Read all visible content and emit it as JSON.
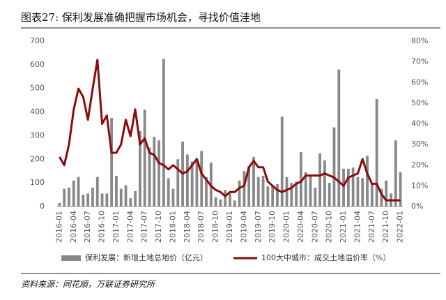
{
  "chart_data": {
    "type": "bar_line",
    "title": "图表27: 保利发展准确把握市场机会，寻找价值洼地",
    "source": "资料来源：同花顺，万联证券研究所",
    "categories": [
      "2016-01",
      null,
      null,
      "2016-04",
      null,
      null,
      "2016-07",
      null,
      null,
      "2016-10",
      null,
      null,
      "2017-01",
      null,
      null,
      "2017-04",
      null,
      null,
      "2017-07",
      null,
      null,
      "2017-10",
      null,
      null,
      "2018-01",
      null,
      null,
      "2018-04",
      null,
      null,
      "2018-07",
      null,
      null,
      "2018-10",
      null,
      null,
      "2019-01",
      null,
      null,
      "2019-04",
      null,
      null,
      "2019-07",
      null,
      null,
      "2019-10",
      null,
      null,
      "2020-01",
      null,
      null,
      "2020-04",
      null,
      null,
      "2020-07",
      null,
      null,
      "2020-10",
      null,
      null,
      "2021-01",
      null,
      null,
      "2021-04",
      null,
      null,
      "2021-07",
      null,
      null,
      "2021-10",
      null,
      null,
      "2022-01"
    ],
    "series": [
      {
        "name": "保利发展：新增土地总地价（亿元）",
        "color": "#888888",
        "kind": "bar",
        "values": [
          15,
          75,
          80,
          110,
          125,
          50,
          55,
          80,
          125,
          55,
          55,
          375,
          130,
          75,
          90,
          35,
          65,
          320,
          410,
          250,
          295,
          280,
          625,
          120,
          75,
          200,
          275,
          220,
          190,
          200,
          235,
          125,
          185,
          40,
          30,
          70,
          55,
          25,
          110,
          150,
          170,
          210,
          125,
          130,
          85,
          90,
          95,
          380,
          125,
          100,
          105,
          230,
          145,
          130,
          80,
          225,
          195,
          100,
          335,
          580,
          160,
          160,
          165,
          125,
          120,
          215,
          100,
          455,
          75,
          110,
          55,
          280,
          145
        ]
      },
      {
        "name": "100大中城市：成交土地溢价率（%）",
        "color": "#8b0a0a",
        "kind": "line",
        "axis": "y2",
        "values": [
          24,
          20,
          30,
          47,
          57,
          53,
          42,
          57,
          71,
          40,
          44,
          26,
          26,
          30,
          42,
          34,
          47,
          30,
          33,
          26,
          25,
          21,
          20,
          18,
          20,
          18,
          16,
          17,
          20,
          23,
          16,
          13,
          10,
          8,
          7,
          5,
          7,
          7,
          9,
          10,
          19,
          22,
          19,
          19,
          12,
          10,
          8,
          7,
          8,
          9,
          11,
          12,
          15,
          15,
          15,
          15,
          16,
          15,
          14,
          12,
          10,
          14,
          15,
          16,
          23,
          16,
          11,
          11,
          6,
          3,
          3,
          3,
          3
        ]
      }
    ],
    "ylim": [
      0,
      700
    ],
    "yticks": [
      0,
      100,
      200,
      300,
      400,
      500,
      600,
      700
    ],
    "y2lim": [
      0,
      80
    ],
    "y2ticks": [
      {
        "value": 0,
        "label": "0%"
      },
      {
        "value": 10,
        "label": "10%"
      },
      {
        "value": 20,
        "label": "20%"
      },
      {
        "value": 30,
        "label": "30%"
      },
      {
        "value": 40,
        "label": "40%"
      },
      {
        "value": 50,
        "label": "50%"
      },
      {
        "value": 60,
        "label": "60%"
      },
      {
        "value": 70,
        "label": "70%"
      },
      {
        "value": 80,
        "label": "80%"
      }
    ],
    "legend": "bottom"
  }
}
